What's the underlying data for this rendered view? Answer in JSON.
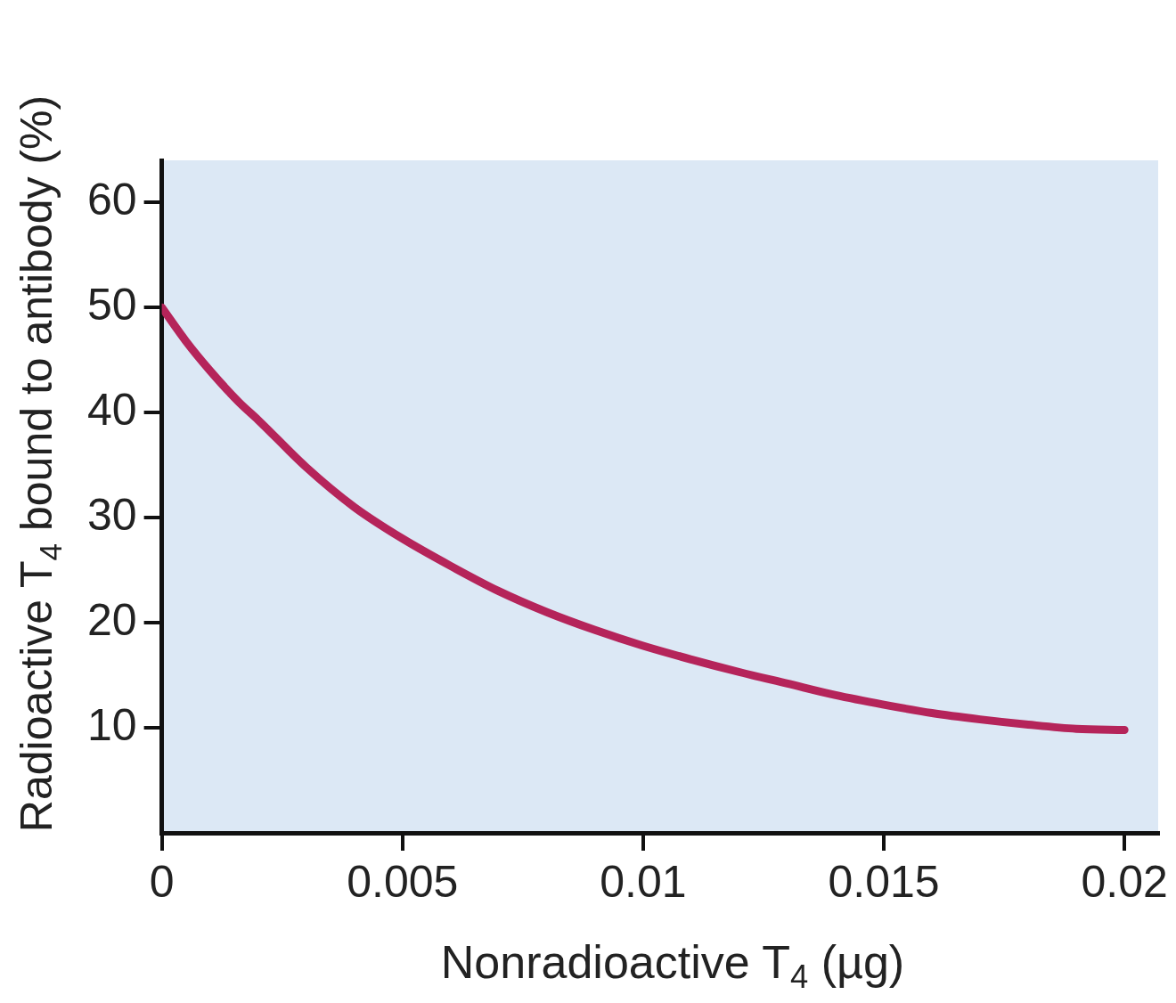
{
  "chart_data": {
    "type": "line",
    "xlabel": "Nonradioactive T$_{4}$ (µg)",
    "ylabel": "Radioactive T$_{4}$ bound to antibody (%)",
    "x": [
      0,
      0.0005,
      0.001,
      0.0016,
      0.002,
      0.003,
      0.004,
      0.005,
      0.006,
      0.007,
      0.008,
      0.009,
      0.01,
      0.011,
      0.012,
      0.013,
      0.014,
      0.015,
      0.016,
      0.017,
      0.018,
      0.019,
      0.02
    ],
    "series": [
      {
        "color": "#b5245a",
        "values": [
          50,
          46.8,
          44,
          41,
          39.3,
          34.8,
          31,
          28,
          25.4,
          23,
          21,
          19.3,
          17.8,
          16.5,
          15.3,
          14.2,
          13.1,
          12.2,
          11.4,
          10.8,
          10.3,
          9.9,
          9.8
        ]
      }
    ],
    "xlim": [
      0,
      0.0207
    ],
    "ylim": [
      0,
      64
    ],
    "xticks": [
      0,
      0.005,
      0.01,
      0.015,
      0.02
    ],
    "yticks": [
      10,
      20,
      30,
      40,
      50,
      60
    ],
    "grid": false,
    "legend": false,
    "marker": "none",
    "line_style": "solid"
  }
}
